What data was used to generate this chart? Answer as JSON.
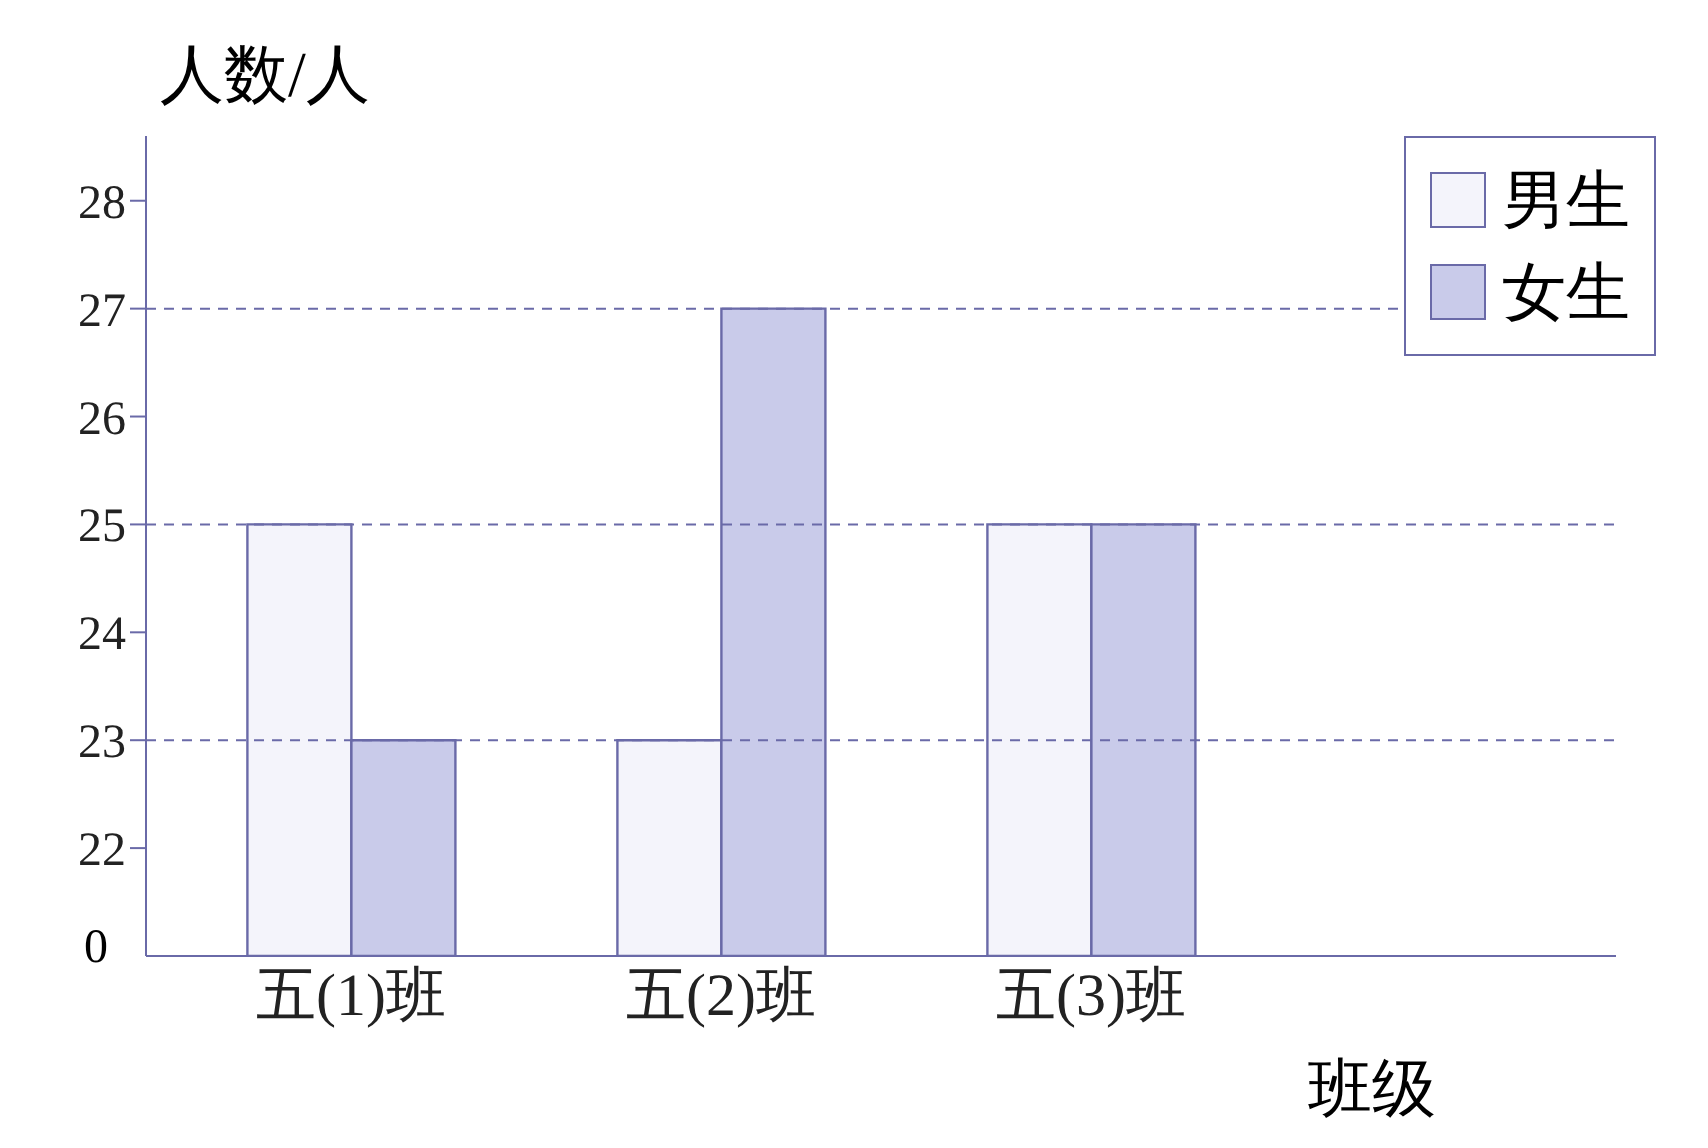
{
  "chart_data": {
    "type": "bar",
    "ylabel": "人数/人",
    "xlabel": "班级",
    "categories": [
      "五(1)班",
      "五(2)班",
      "五(3)班"
    ],
    "series": [
      {
        "name": "男生",
        "color": "#f4f4fb",
        "values": [
          25,
          23,
          25
        ]
      },
      {
        "name": "女生",
        "color": "#c9cbea",
        "values": [
          23,
          27,
          25
        ]
      }
    ],
    "ylim": [
      21,
      28.6
    ],
    "yticks": [
      22,
      23,
      24,
      25,
      26,
      27,
      28
    ],
    "annotations": [
      "0"
    ],
    "ref_lines": [
      {
        "axis": "y",
        "value": 27,
        "line_style": "dashed",
        "color": "#6a6aa8"
      },
      {
        "axis": "y",
        "value": 25,
        "line_style": "dashed",
        "color": "#6a6aa8"
      },
      {
        "axis": "y",
        "value": 23,
        "line_style": "dashed",
        "color": "#6a6aa8"
      }
    ],
    "legend": "top right",
    "grid": false
  }
}
